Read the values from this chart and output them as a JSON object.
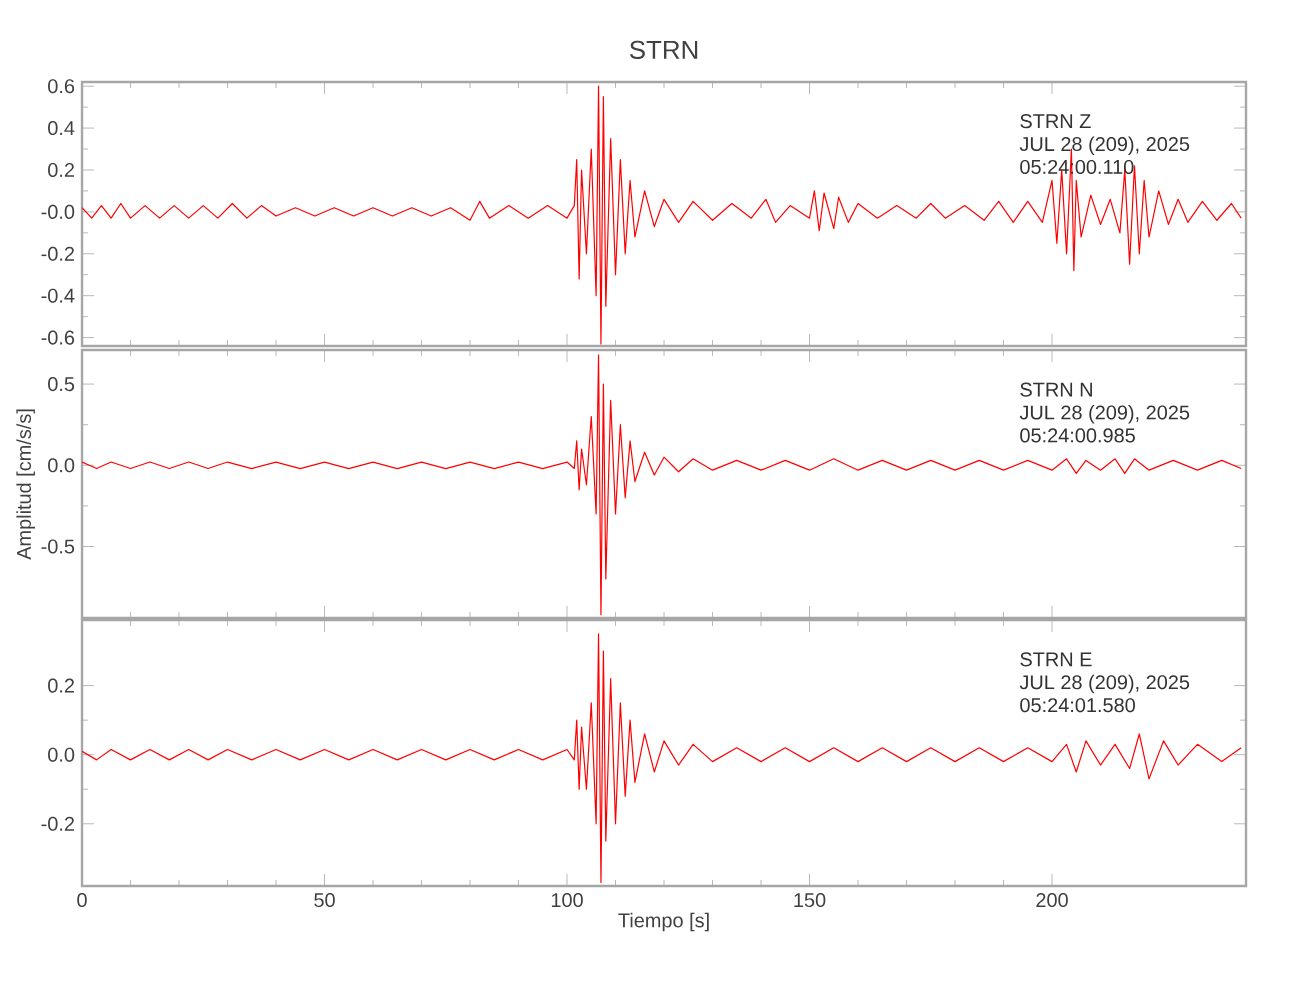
{
  "chart_data": [
    {
      "type": "line",
      "title": "STRN",
      "color": "#ff0000",
      "xlim": [
        0,
        240
      ],
      "xticks": [
        0,
        50,
        100,
        150,
        200
      ],
      "ylim": [
        -0.64,
        0.62
      ],
      "yticks": [
        {
          "value": -0.6,
          "label": "-0.6"
        },
        {
          "value": -0.4,
          "label": "-0.4"
        },
        {
          "value": -0.2,
          "label": "-0.2"
        },
        {
          "value": 0,
          "label": "-0.0"
        },
        {
          "value": 0.2,
          "label": "0.2"
        },
        {
          "value": 0.4,
          "label": "0.4"
        },
        {
          "value": 0.6,
          "label": "0.6"
        }
      ],
      "tick_labels": "y",
      "annotations": [
        "STRN   Z",
        "JUL 28 (209), 2025",
        "05:24:00.110"
      ],
      "x": [
        0,
        2,
        4,
        6,
        8,
        10,
        13,
        16,
        19,
        22,
        25,
        28,
        31,
        34,
        37,
        40,
        44,
        48,
        52,
        56,
        60,
        64,
        68,
        72,
        76,
        80,
        82,
        84,
        88,
        92,
        96,
        100,
        101.5,
        102,
        102.5,
        103,
        104,
        105,
        106,
        106.5,
        107,
        107.5,
        108,
        109,
        110,
        111,
        112,
        113,
        114,
        116,
        118,
        120,
        123,
        126,
        130,
        134,
        138,
        141,
        143,
        146,
        150,
        151,
        152,
        153,
        155,
        156,
        158,
        160,
        164,
        168,
        172,
        175,
        178,
        182,
        186,
        189,
        192,
        195,
        198,
        200,
        201,
        202,
        203,
        204,
        204.5,
        205,
        206,
        208,
        210,
        212,
        214,
        215,
        216,
        217,
        218,
        219,
        220,
        222,
        224,
        226,
        228,
        231,
        234,
        237,
        239
      ],
      "values": [
        0.02,
        -0.03,
        0.03,
        -0.03,
        0.04,
        -0.03,
        0.03,
        -0.03,
        0.03,
        -0.03,
        0.03,
        -0.03,
        0.04,
        -0.03,
        0.03,
        -0.02,
        0.02,
        -0.02,
        0.02,
        -0.02,
        0.02,
        -0.02,
        0.02,
        -0.02,
        0.02,
        -0.04,
        0.05,
        -0.03,
        0.03,
        -0.03,
        0.03,
        -0.03,
        0.03,
        0.25,
        -0.32,
        0.2,
        -0.2,
        0.3,
        -0.4,
        0.6,
        -0.63,
        0.55,
        -0.45,
        0.35,
        -0.3,
        0.25,
        -0.2,
        0.15,
        -0.12,
        0.1,
        -0.07,
        0.06,
        -0.05,
        0.05,
        -0.04,
        0.04,
        -0.03,
        0.06,
        -0.05,
        0.03,
        -0.03,
        0.1,
        -0.09,
        0.09,
        -0.08,
        0.07,
        -0.05,
        0.04,
        -0.03,
        0.03,
        -0.03,
        0.04,
        -0.03,
        0.03,
        -0.04,
        0.05,
        -0.05,
        0.05,
        -0.05,
        0.15,
        -0.15,
        0.2,
        -0.2,
        0.3,
        -0.28,
        0.15,
        -0.12,
        0.08,
        -0.06,
        0.06,
        -0.1,
        0.2,
        -0.25,
        0.22,
        -0.2,
        0.15,
        -0.12,
        0.1,
        -0.06,
        0.06,
        -0.05,
        0.05,
        -0.04,
        0.04,
        -0.03
      ]
    },
    {
      "type": "line",
      "ylabel": "Amplitud [cm/s/s]",
      "color": "#ff0000",
      "xlim": [
        0,
        240
      ],
      "xticks": [
        0,
        50,
        100,
        150,
        200
      ],
      "ylim": [
        -0.94,
        0.71
      ],
      "yticks": [
        -0.5,
        {
          "value": 0,
          "label": "0.0"
        },
        0.5
      ],
      "tick_labels": "y",
      "annotations": [
        "STRN   N",
        "JUL 28 (209), 2025",
        "05:24:00.985"
      ],
      "x": [
        0,
        3,
        6,
        10,
        14,
        18,
        22,
        26,
        30,
        35,
        40,
        45,
        50,
        55,
        60,
        65,
        70,
        75,
        80,
        85,
        90,
        95,
        100,
        101.5,
        102,
        102.5,
        103,
        104,
        105,
        106,
        106.5,
        107,
        107.5,
        108,
        109,
        110,
        111,
        112,
        113,
        114,
        116,
        118,
        120,
        123,
        126,
        130,
        135,
        140,
        145,
        150,
        155,
        160,
        165,
        170,
        175,
        180,
        185,
        190,
        195,
        200,
        203,
        205,
        207,
        210,
        213,
        215,
        217,
        220,
        225,
        230,
        235,
        239
      ],
      "values": [
        0.02,
        -0.02,
        0.02,
        -0.02,
        0.02,
        -0.02,
        0.02,
        -0.02,
        0.02,
        -0.02,
        0.02,
        -0.02,
        0.02,
        -0.02,
        0.02,
        -0.02,
        0.02,
        -0.02,
        0.02,
        -0.02,
        0.02,
        -0.02,
        0.02,
        -0.02,
        0.15,
        -0.15,
        0.1,
        -0.12,
        0.3,
        -0.3,
        0.68,
        -0.92,
        0.5,
        -0.7,
        0.4,
        -0.3,
        0.25,
        -0.2,
        0.15,
        -0.1,
        0.08,
        -0.06,
        0.05,
        -0.04,
        0.04,
        -0.03,
        0.03,
        -0.03,
        0.03,
        -0.03,
        0.04,
        -0.03,
        0.03,
        -0.03,
        0.03,
        -0.03,
        0.03,
        -0.03,
        0.03,
        -0.03,
        0.04,
        -0.05,
        0.03,
        -0.03,
        0.04,
        -0.05,
        0.04,
        -0.03,
        0.03,
        -0.03,
        0.03,
        -0.02
      ]
    },
    {
      "type": "line",
      "xlabel": "Tiempo [s]",
      "color": "#ff0000",
      "xlim": [
        0,
        240
      ],
      "xticks": [
        0,
        50,
        100,
        150,
        200
      ],
      "ylim": [
        -0.38,
        0.39
      ],
      "yticks": [
        -0.2,
        {
          "value": 0,
          "label": "0.0"
        },
        0.2
      ],
      "annotations": [
        "STRN   E",
        "JUL 28 (209), 2025",
        "05:24:01.580"
      ],
      "x": [
        0,
        3,
        6,
        10,
        14,
        18,
        22,
        26,
        30,
        35,
        40,
        45,
        50,
        55,
        60,
        65,
        70,
        75,
        80,
        85,
        90,
        95,
        100,
        101.5,
        102,
        102.5,
        103,
        104,
        105,
        106,
        106.5,
        107,
        107.5,
        108,
        109,
        110,
        111,
        112,
        113,
        114,
        116,
        118,
        120,
        123,
        126,
        130,
        135,
        140,
        145,
        150,
        155,
        160,
        165,
        170,
        175,
        180,
        185,
        190,
        195,
        200,
        203,
        205,
        207,
        210,
        213,
        216,
        218,
        220,
        223,
        226,
        230,
        235,
        239
      ],
      "values": [
        0.01,
        -0.015,
        0.015,
        -0.015,
        0.015,
        -0.015,
        0.015,
        -0.015,
        0.015,
        -0.015,
        0.015,
        -0.015,
        0.015,
        -0.015,
        0.015,
        -0.015,
        0.015,
        -0.015,
        0.015,
        -0.015,
        0.015,
        -0.015,
        0.015,
        -0.015,
        0.1,
        -0.1,
        0.08,
        -0.1,
        0.15,
        -0.2,
        0.35,
        -0.37,
        0.3,
        -0.25,
        0.22,
        -0.2,
        0.15,
        -0.12,
        0.1,
        -0.08,
        0.06,
        -0.05,
        0.04,
        -0.03,
        0.03,
        -0.02,
        0.02,
        -0.02,
        0.02,
        -0.02,
        0.02,
        -0.02,
        0.02,
        -0.02,
        0.02,
        -0.02,
        0.02,
        -0.02,
        0.02,
        -0.02,
        0.03,
        -0.05,
        0.04,
        -0.03,
        0.03,
        -0.04,
        0.06,
        -0.07,
        0.04,
        -0.03,
        0.03,
        -0.02,
        0.02
      ]
    }
  ]
}
